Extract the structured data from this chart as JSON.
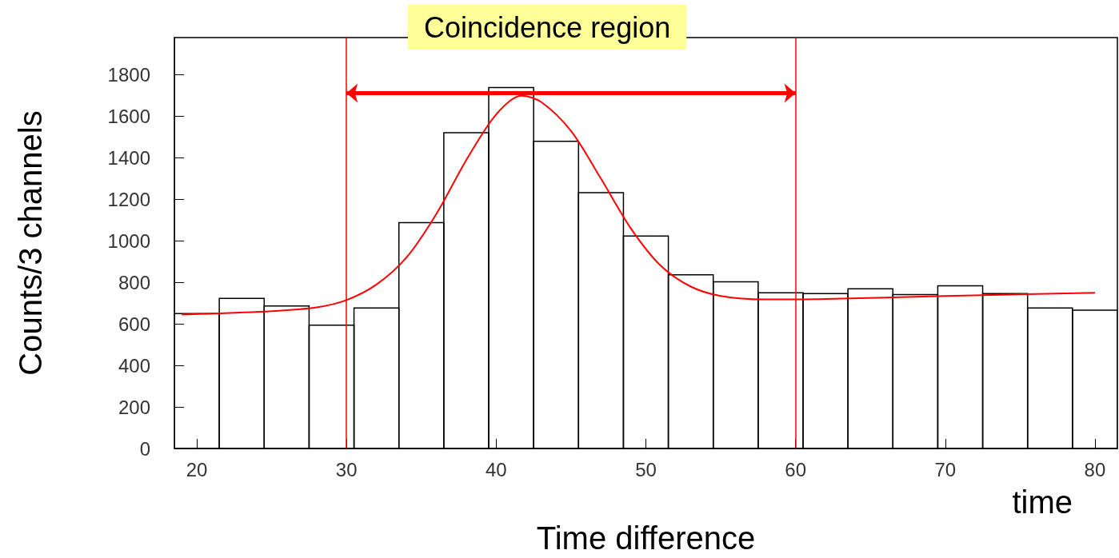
{
  "chart_data": {
    "type": "histogram",
    "title": "Coincidence region",
    "xlabel": "Time difference",
    "ylabel": "Counts/3 channels",
    "annotations": [
      "time"
    ],
    "bins": [
      18.5,
      21.5,
      24.5,
      27.5,
      30.5,
      33.5,
      36.5,
      39.5,
      42.5,
      45.5,
      48.5,
      51.5,
      54.5,
      57.5,
      60.5,
      63.5,
      66.5,
      69.5,
      72.5,
      75.5,
      78.5,
      81.5
    ],
    "series": [
      {
        "color": "#000000",
        "values": [
          650,
          723,
          687,
          594,
          677,
          1088,
          1522,
          1739,
          1480,
          1233,
          1024,
          837,
          803,
          750,
          746,
          769,
          742,
          784,
          746,
          677,
          666
        ]
      },
      {
        "type": "line",
        "color": "#ff0000",
        "x": [
          19,
          25,
          28,
          30,
          32,
          34,
          36,
          38,
          40,
          41.7,
          43,
          45,
          47,
          49,
          51,
          53,
          55,
          58,
          62,
          70,
          80
        ],
        "values": [
          645,
          662,
          680,
          715,
          790,
          920,
          1130,
          1390,
          1610,
          1700,
          1670,
          1530,
          1300,
          1060,
          880,
          780,
          735,
          718,
          720,
          735,
          750
        ]
      }
    ],
    "xlim": [
      18.5,
      81.5
    ],
    "xticks": [
      20,
      30,
      40,
      50,
      60,
      70,
      80
    ],
    "ylim": [
      0,
      1980
    ],
    "yticks": [
      0,
      200,
      400,
      600,
      800,
      1000,
      1200,
      1400,
      1600,
      1800
    ],
    "grid": false,
    "marker": "none",
    "line_style": "solid",
    "ref_lines": [
      {
        "axis": "x",
        "value": 30,
        "color": "#ff0000"
      },
      {
        "axis": "x",
        "value": 60,
        "color": "#ff0000"
      }
    ]
  }
}
